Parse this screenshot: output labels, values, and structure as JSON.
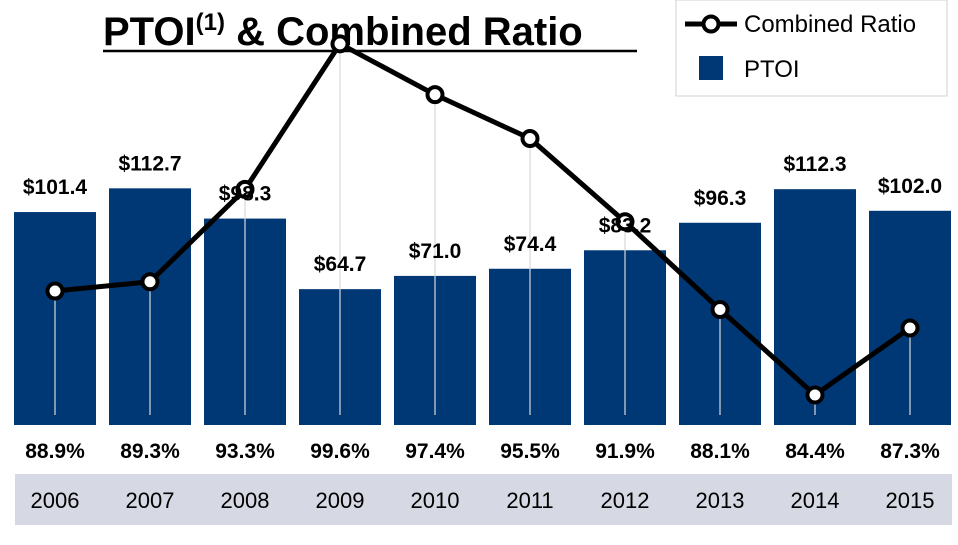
{
  "title": {
    "main": "PTOI",
    "superscript": "(1)",
    "rest": " & Combined Ratio"
  },
  "legend": {
    "line_label": "Combined Ratio",
    "bar_label": "PTOI"
  },
  "colors": {
    "bar": "#003876",
    "line": "#000000",
    "year_band": "#d6d9e4",
    "drop_line": "#d9d9d9"
  },
  "chart_data": {
    "type": "bar",
    "categories": [
      "2006",
      "2007",
      "2008",
      "2009",
      "2010",
      "2011",
      "2012",
      "2013",
      "2014",
      "2015"
    ],
    "series": [
      {
        "name": "PTOI",
        "type": "bar",
        "values": [
          101.4,
          112.7,
          98.3,
          64.7,
          71.0,
          74.4,
          83.2,
          96.3,
          112.3,
          102.0
        ],
        "labels": [
          "$101.4",
          "$112.7",
          "$98.3",
          "$64.7",
          "$71.0",
          "$74.4",
          "$83.2",
          "$96.3",
          "$112.3",
          "$102.0"
        ]
      },
      {
        "name": "Combined Ratio",
        "type": "line",
        "values": [
          88.9,
          89.3,
          93.3,
          99.6,
          97.4,
          95.5,
          91.9,
          88.1,
          84.4,
          87.3
        ],
        "labels": [
          "88.9%",
          "89.3%",
          "93.3%",
          "99.6%",
          "97.4%",
          "95.5%",
          "91.9%",
          "88.1%",
          "84.4%",
          "87.3%"
        ]
      }
    ],
    "title": "PTOI(1) & Combined Ratio",
    "legend_position": "top-right",
    "grid": false
  }
}
